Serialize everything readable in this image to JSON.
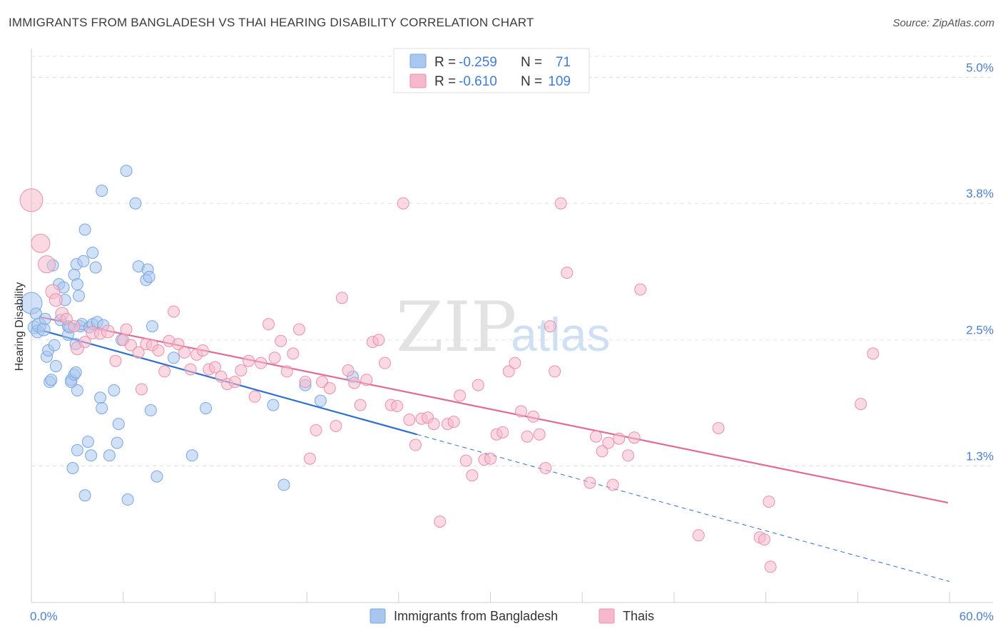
{
  "title": "IMMIGRANTS FROM BANGLADESH VS THAI HEARING DISABILITY CORRELATION CHART",
  "source": "Source: ZipAtlas.com",
  "watermark": {
    "zip": "ZIP",
    "atlas": "atlas"
  },
  "legend_top": {
    "r_label": "R =",
    "n_label": "N =",
    "rows": [
      {
        "r": "-0.259",
        "n": "71",
        "color": "#aac7f0",
        "stroke": "#7aa6e0"
      },
      {
        "r": "-0.610",
        "n": "109",
        "color": "#f6b8cb",
        "stroke": "#ea8fae"
      }
    ]
  },
  "chart_data": {
    "type": "scatter",
    "title": "IMMIGRANTS FROM BANGLADESH VS THAI HEARING DISABILITY CORRELATION CHART",
    "xlabel": "",
    "ylabel": "Hearing Disability",
    "xlim": [
      0,
      60
    ],
    "ylim": [
      0,
      5.2
    ],
    "x_tick_labels": [
      "0.0%",
      "60.0%"
    ],
    "y_ticks": [
      1.3,
      2.5,
      3.8,
      5.0
    ],
    "y_tick_labels": [
      "1.3%",
      "2.5%",
      "3.8%",
      "5.0%"
    ],
    "grid": true,
    "legend_position": "top-center",
    "series": [
      {
        "name": "Immigrants from Bangladesh",
        "color": "#a9c6ef",
        "stroke": "#7aa6e0",
        "line_color": "#2e6fd0",
        "trend": {
          "x0": 0.2,
          "y0": 2.61,
          "x1": 25.2,
          "y1": 1.6,
          "dashed_to_x": 60,
          "dashed_to_y": 0.2
        },
        "points": [
          [
            0.0,
            2.85,
            15
          ],
          [
            0.2,
            2.62,
            9
          ],
          [
            0.3,
            2.75,
            8
          ],
          [
            0.4,
            2.58,
            9
          ],
          [
            0.5,
            2.64,
            10
          ],
          [
            0.8,
            2.6,
            9
          ],
          [
            0.9,
            2.7,
            8
          ],
          [
            1.0,
            2.34,
            8
          ],
          [
            1.1,
            2.4,
            8
          ],
          [
            1.2,
            2.1,
            8
          ],
          [
            1.3,
            2.12,
            8
          ],
          [
            1.4,
            3.21,
            8
          ],
          [
            1.5,
            2.45,
            8
          ],
          [
            1.6,
            2.25,
            8
          ],
          [
            1.8,
            3.03,
            8
          ],
          [
            1.9,
            2.69,
            8
          ],
          [
            2.1,
            3.0,
            8
          ],
          [
            2.2,
            2.88,
            8
          ],
          [
            2.4,
            2.55,
            8
          ],
          [
            2.6,
            2.12,
            8
          ],
          [
            2.8,
            3.12,
            8
          ],
          [
            2.9,
            2.46,
            8
          ],
          [
            2.95,
            3.22,
            8
          ],
          [
            3.0,
            2.02,
            8
          ],
          [
            2.4,
            2.63,
            8
          ],
          [
            2.5,
            2.62,
            8
          ],
          [
            2.6,
            2.1,
            8
          ],
          [
            2.7,
            1.28,
            8
          ],
          [
            2.8,
            2.17,
            8
          ],
          [
            2.9,
            2.19,
            8
          ],
          [
            3.0,
            1.45,
            8
          ],
          [
            3.5,
            1.02,
            8
          ],
          [
            3.0,
            3.03,
            8
          ],
          [
            3.1,
            2.92,
            8
          ],
          [
            3.2,
            2.63,
            8
          ],
          [
            3.3,
            2.65,
            8
          ],
          [
            3.4,
            3.25,
            8
          ],
          [
            3.5,
            3.55,
            8
          ],
          [
            3.7,
            1.53,
            8
          ],
          [
            3.8,
            2.62,
            8
          ],
          [
            3.9,
            1.4,
            8
          ],
          [
            4.0,
            2.65,
            8
          ],
          [
            4.0,
            3.33,
            8
          ],
          [
            4.2,
            3.19,
            8
          ],
          [
            4.3,
            2.67,
            8
          ],
          [
            4.5,
            1.95,
            8
          ],
          [
            4.6,
            1.85,
            8
          ],
          [
            4.6,
            3.92,
            8
          ],
          [
            4.7,
            2.64,
            8
          ],
          [
            5.1,
            1.4,
            8
          ],
          [
            5.4,
            2.02,
            8
          ],
          [
            5.6,
            1.52,
            8
          ],
          [
            5.7,
            1.7,
            8
          ],
          [
            5.9,
            2.5,
            8
          ],
          [
            6.2,
            4.11,
            8
          ],
          [
            6.3,
            0.98,
            8
          ],
          [
            6.8,
            3.8,
            8
          ],
          [
            7.0,
            3.2,
            8
          ],
          [
            7.5,
            3.07,
            8
          ],
          [
            7.6,
            3.17,
            8
          ],
          [
            7.7,
            3.1,
            8
          ],
          [
            7.8,
            1.83,
            8
          ],
          [
            7.9,
            2.63,
            8
          ],
          [
            8.2,
            1.2,
            8
          ],
          [
            9.3,
            2.33,
            8
          ],
          [
            10.5,
            1.4,
            8
          ],
          [
            11.4,
            1.85,
            8
          ],
          [
            15.8,
            1.88,
            8
          ],
          [
            16.5,
            1.12,
            8
          ],
          [
            17.9,
            2.07,
            8
          ],
          [
            18.9,
            1.92,
            8
          ],
          [
            21.0,
            2.15,
            8
          ]
        ]
      },
      {
        "name": "Thais",
        "color": "#f6b9cc",
        "stroke": "#ea90ae",
        "line_color": "#e06b96",
        "trend": {
          "x0": 0.5,
          "y0": 2.72,
          "x1": 59.9,
          "y1": 0.95
        },
        "points": [
          [
            0.0,
            3.83,
            16
          ],
          [
            0.6,
            3.42,
            13
          ],
          [
            1.0,
            3.22,
            12
          ],
          [
            1.4,
            2.96,
            10
          ],
          [
            1.6,
            2.88,
            9
          ],
          [
            2.0,
            2.75,
            9
          ],
          [
            2.3,
            2.7,
            8
          ],
          [
            2.8,
            2.63,
            8
          ],
          [
            3.0,
            2.42,
            9
          ],
          [
            3.5,
            2.48,
            8
          ],
          [
            4.0,
            2.57,
            9
          ],
          [
            4.5,
            2.56,
            8
          ],
          [
            5.0,
            2.58,
            9
          ],
          [
            5.5,
            2.3,
            8
          ],
          [
            6.0,
            2.5,
            8
          ],
          [
            6.2,
            2.6,
            8
          ],
          [
            6.5,
            2.45,
            8
          ],
          [
            7.0,
            2.38,
            8
          ],
          [
            7.2,
            2.03,
            8
          ],
          [
            7.5,
            2.46,
            8
          ],
          [
            7.9,
            2.45,
            8
          ],
          [
            8.3,
            2.4,
            8
          ],
          [
            8.7,
            2.2,
            8
          ],
          [
            9.0,
            2.49,
            8
          ],
          [
            9.3,
            2.77,
            8
          ],
          [
            9.6,
            2.46,
            8
          ],
          [
            10.0,
            2.38,
            8
          ],
          [
            10.4,
            2.22,
            8
          ],
          [
            10.8,
            2.36,
            8
          ],
          [
            11.2,
            2.4,
            8
          ],
          [
            11.6,
            2.22,
            8
          ],
          [
            12.0,
            2.24,
            8
          ],
          [
            12.4,
            2.15,
            8
          ],
          [
            12.8,
            2.08,
            8
          ],
          [
            13.3,
            2.1,
            8
          ],
          [
            13.7,
            2.21,
            8
          ],
          [
            14.2,
            2.3,
            8
          ],
          [
            14.6,
            1.96,
            8
          ],
          [
            15.0,
            2.28,
            8
          ],
          [
            15.5,
            2.65,
            8
          ],
          [
            15.9,
            2.33,
            8
          ],
          [
            16.3,
            2.49,
            8
          ],
          [
            16.7,
            2.2,
            8
          ],
          [
            17.1,
            2.37,
            8
          ],
          [
            17.5,
            2.6,
            8
          ],
          [
            17.9,
            2.1,
            8
          ],
          [
            18.2,
            1.37,
            8
          ],
          [
            18.6,
            1.64,
            8
          ],
          [
            19.0,
            2.1,
            8
          ],
          [
            19.5,
            2.04,
            8
          ],
          [
            19.9,
            1.68,
            8
          ],
          [
            20.3,
            2.9,
            8
          ],
          [
            20.7,
            2.21,
            8
          ],
          [
            21.1,
            2.09,
            8
          ],
          [
            21.5,
            1.88,
            8
          ],
          [
            21.9,
            2.12,
            8
          ],
          [
            22.3,
            2.48,
            8
          ],
          [
            22.7,
            2.5,
            8
          ],
          [
            23.1,
            2.28,
            8
          ],
          [
            23.5,
            1.88,
            8
          ],
          [
            23.9,
            1.87,
            8
          ],
          [
            24.3,
            3.8,
            8
          ],
          [
            24.7,
            1.74,
            8
          ],
          [
            25.1,
            1.5,
            8
          ],
          [
            25.5,
            1.75,
            8
          ],
          [
            25.9,
            1.76,
            8
          ],
          [
            26.3,
            1.7,
            8
          ],
          [
            26.7,
            0.77,
            8
          ],
          [
            27.2,
            1.7,
            8
          ],
          [
            27.6,
            1.72,
            8
          ],
          [
            28.0,
            1.97,
            8
          ],
          [
            28.4,
            1.35,
            8
          ],
          [
            28.8,
            1.21,
            8
          ],
          [
            29.2,
            2.07,
            8
          ],
          [
            29.6,
            1.36,
            8
          ],
          [
            30.0,
            1.37,
            8
          ],
          [
            30.4,
            1.6,
            8
          ],
          [
            30.8,
            1.62,
            8
          ],
          [
            31.2,
            2.2,
            8
          ],
          [
            31.6,
            2.28,
            8
          ],
          [
            32.0,
            1.82,
            8
          ],
          [
            32.4,
            1.58,
            8
          ],
          [
            32.8,
            1.77,
            8
          ],
          [
            33.2,
            1.6,
            8
          ],
          [
            33.6,
            1.28,
            8
          ],
          [
            33.9,
            2.63,
            8
          ],
          [
            34.2,
            2.2,
            8
          ],
          [
            34.6,
            3.8,
            8
          ],
          [
            35.0,
            3.14,
            8
          ],
          [
            36.5,
            1.14,
            8
          ],
          [
            36.9,
            1.58,
            8
          ],
          [
            37.3,
            1.44,
            8
          ],
          [
            37.7,
            1.52,
            8
          ],
          [
            38.0,
            1.12,
            8
          ],
          [
            38.4,
            1.56,
            8
          ],
          [
            39.0,
            1.4,
            8
          ],
          [
            39.4,
            1.57,
            8
          ],
          [
            39.8,
            2.98,
            8
          ],
          [
            43.6,
            0.64,
            8
          ],
          [
            44.9,
            1.66,
            8
          ],
          [
            47.6,
            0.62,
            8
          ],
          [
            47.9,
            0.6,
            8
          ],
          [
            48.2,
            0.96,
            8
          ],
          [
            48.3,
            0.34,
            8
          ],
          [
            54.2,
            1.89,
            8
          ],
          [
            55.0,
            2.37,
            8
          ]
        ]
      }
    ]
  }
}
